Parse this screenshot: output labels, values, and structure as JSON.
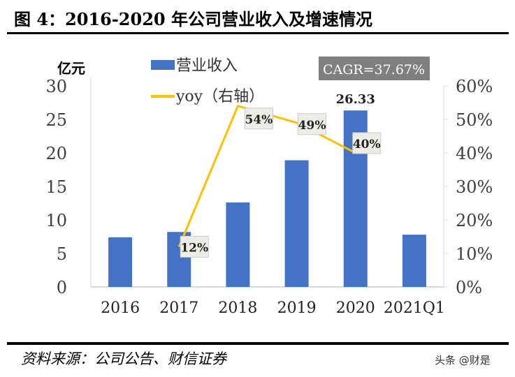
{
  "title": "图 4：2016-2020 年公司营业收入及增速情况",
  "source": "资料来源：公司公告、财信证券",
  "watermark": "头条 @财是",
  "annotation": "CAGR=37.67%",
  "chart_data": {
    "type": "bar+line",
    "categories": [
      "2016",
      "2017",
      "2018",
      "2019",
      "2020",
      "2021Q1"
    ],
    "ylabel": "亿元",
    "ylim": [
      0,
      30
    ],
    "yticks": [
      "0",
      "5",
      "10",
      "15",
      "20",
      "25",
      "30"
    ],
    "y2lim": [
      0,
      60
    ],
    "y2ticks": [
      "0%",
      "10%",
      "20%",
      "30%",
      "40%",
      "50%",
      "60%"
    ],
    "legend_position": "top",
    "series": [
      {
        "name": "营业收入",
        "type": "bar",
        "axis": "left",
        "color": "#4472C4",
        "values": [
          7.4,
          8.2,
          12.6,
          18.9,
          26.33,
          7.8
        ],
        "data_labels": {
          "4": "26.33"
        }
      },
      {
        "name": "yoy（右轴）",
        "type": "line",
        "axis": "right",
        "color": "#FFC000",
        "values": [
          null,
          12,
          54,
          49,
          40,
          null
        ],
        "data_labels": {
          "1": "12%",
          "2": "54%",
          "3": "49%",
          "4": "40%"
        }
      }
    ]
  }
}
